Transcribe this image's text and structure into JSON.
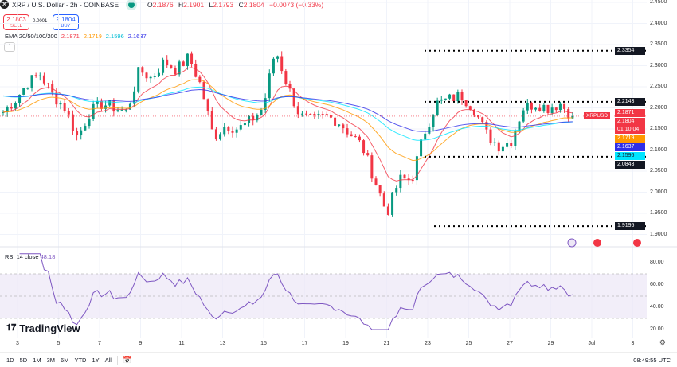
{
  "header": {
    "symbol_icon": "xrp-logo",
    "title": "XRP / U.S. Dollar - 2h - COINBASE",
    "status_icon": "market-open-dot",
    "ohlc": {
      "o_label": "O",
      "o": "2.1876",
      "h_label": "H",
      "h": "2.1901",
      "l_label": "L",
      "l": "2.1793",
      "c_label": "C",
      "c": "2.1804",
      "change": "−0.0073 (−0.33%)"
    }
  },
  "trade": {
    "sell_price": "2.1803",
    "sell_label": "SELL",
    "spread": "0.0001",
    "buy_price": "2.1804",
    "buy_label": "BUY"
  },
  "ema": {
    "label": "EMA 20/50/100/200",
    "v20": "2.1871",
    "v50": "2.1719",
    "v100": "2.1596",
    "v200": "2.1637"
  },
  "colors": {
    "up": "#089981",
    "down": "#f23645",
    "ema20": "#f23645",
    "ema50": "#ff9800",
    "ema100": "#00e5ff",
    "ema200": "#2e2ee8",
    "rsi": "#7e57c2"
  },
  "price_axis": [
    "2.4500",
    "2.4000",
    "2.3500",
    "2.3000",
    "2.2500",
    "2.2000",
    "2.1500",
    "2.1000",
    "2.0500",
    "2.0000",
    "1.9500",
    "1.9000"
  ],
  "price_labels": {
    "r1": "2.3354",
    "r2": "2.2143",
    "ema20": "2.1871",
    "symbol": "XRPUSD",
    "last": "2.1804",
    "countdown": "01:10:04",
    "ema50": "2.1719",
    "ema200": "2.1637",
    "ema100": "2.1596",
    "s1": "2.0843",
    "s2": "1.9195"
  },
  "rsi": {
    "label": "RSI 14 close",
    "value": "48.18",
    "axis": [
      "80.00",
      "60.00",
      "40.00",
      "20.00"
    ]
  },
  "x_axis": [
    "3",
    "5",
    "7",
    "9",
    "11",
    "13",
    "15",
    "17",
    "19",
    "21",
    "23",
    "25",
    "27",
    "29",
    "Jul",
    "3"
  ],
  "ranges": [
    "1D",
    "5D",
    "1M",
    "3M",
    "6M",
    "YTD",
    "1Y",
    "All"
  ],
  "time": "08:49:55 UTC",
  "brand": "TradingView",
  "chart_data": {
    "type": "candlestick",
    "title": "XRP / U.S. Dollar - 2h - COINBASE",
    "closes": [
      2.19,
      2.22,
      2.26,
      2.28,
      2.23,
      2.2,
      2.13,
      2.19,
      2.21,
      2.2,
      2.19,
      2.29,
      2.27,
      2.31,
      2.29,
      2.32,
      2.25,
      2.13,
      2.16,
      2.15,
      2.17,
      2.2,
      2.34,
      2.25,
      2.18,
      2.17,
      2.18,
      2.17,
      2.14,
      2.11,
      2.03,
      1.95,
      2.03,
      2.03,
      2.14,
      2.21,
      2.22,
      2.23,
      2.2,
      2.14,
      2.11,
      2.12,
      2.2,
      2.21,
      2.2,
      2.21,
      2.18
    ],
    "levels": [
      2.3354,
      2.2143,
      2.0843,
      1.9195
    ],
    "ylim": [
      1.9,
      2.45
    ],
    "rsi_ylim": [
      15,
      90
    ]
  }
}
